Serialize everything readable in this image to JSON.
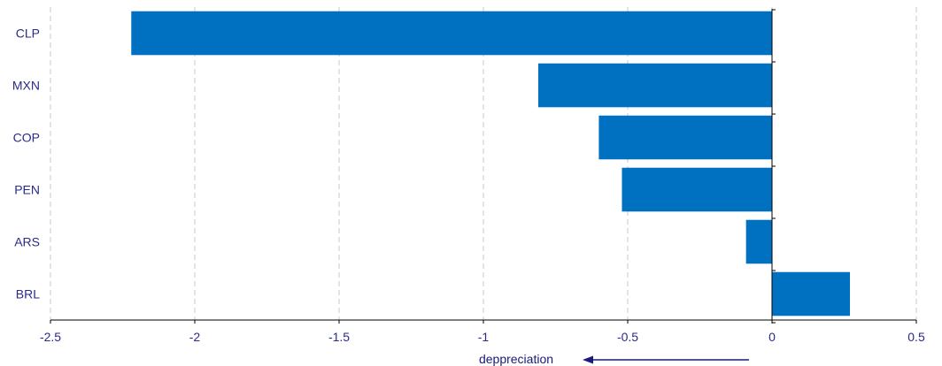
{
  "chart_data": {
    "type": "bar",
    "orientation": "horizontal",
    "categories": [
      "CLP",
      "MXN",
      "COP",
      "PEN",
      "ARS",
      "BRL"
    ],
    "values": [
      -2.22,
      -0.81,
      -0.6,
      -0.52,
      -0.09,
      0.27
    ],
    "xlim": [
      -2.5,
      0.5
    ],
    "xticks": [
      -2.5,
      -2,
      -1.5,
      -1,
      -0.5,
      0,
      0.5
    ],
    "xtick_labels": [
      "-2.5",
      "-2",
      "-1.5",
      "-1",
      "-0.5",
      "0",
      "0.5"
    ],
    "grid": "vertical dashed",
    "bar_color": "#0070c0",
    "annotation": {
      "text": "deppreciation",
      "arrow_direction": "left"
    }
  }
}
